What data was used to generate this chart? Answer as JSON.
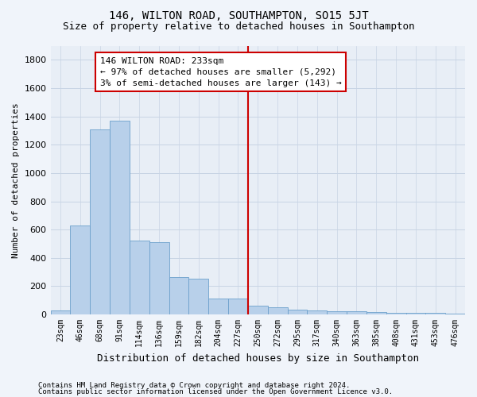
{
  "title": "146, WILTON ROAD, SOUTHAMPTON, SO15 5JT",
  "subtitle": "Size of property relative to detached houses in Southampton",
  "xlabel": "Distribution of detached houses by size in Southampton",
  "ylabel": "Number of detached properties",
  "annotation_line1": "146 WILTON ROAD: 233sqm",
  "annotation_line2": "← 97% of detached houses are smaller (5,292)",
  "annotation_line3": "3% of semi-detached houses are larger (143) →",
  "footer_line1": "Contains HM Land Registry data © Crown copyright and database right 2024.",
  "footer_line2": "Contains public sector information licensed under the Open Government Licence v3.0.",
  "bin_labels": [
    "23sqm",
    "46sqm",
    "68sqm",
    "91sqm",
    "114sqm",
    "136sqm",
    "159sqm",
    "182sqm",
    "204sqm",
    "227sqm",
    "250sqm",
    "272sqm",
    "295sqm",
    "317sqm",
    "340sqm",
    "363sqm",
    "385sqm",
    "408sqm",
    "431sqm",
    "453sqm",
    "476sqm"
  ],
  "bar_values": [
    30,
    630,
    1310,
    1370,
    520,
    510,
    265,
    255,
    110,
    110,
    60,
    50,
    35,
    30,
    22,
    20,
    15,
    12,
    12,
    10,
    8
  ],
  "bar_color": "#b8d0ea",
  "bar_edge_color": "#6ca0cc",
  "vline_color": "#cc0000",
  "vline_idx": 10,
  "ylim": [
    0,
    1900
  ],
  "yticks": [
    0,
    200,
    400,
    600,
    800,
    1000,
    1200,
    1400,
    1600,
    1800
  ],
  "grid_color": "#c8d4e4",
  "bg_color": "#e8eef6",
  "fig_bg_color": "#f0f4fa",
  "title_fontsize": 10,
  "subtitle_fontsize": 9,
  "ylabel_fontsize": 8,
  "xlabel_fontsize": 9,
  "ytick_fontsize": 8,
  "xtick_fontsize": 7,
  "annotation_fontsize": 8,
  "footer_fontsize": 6.5
}
